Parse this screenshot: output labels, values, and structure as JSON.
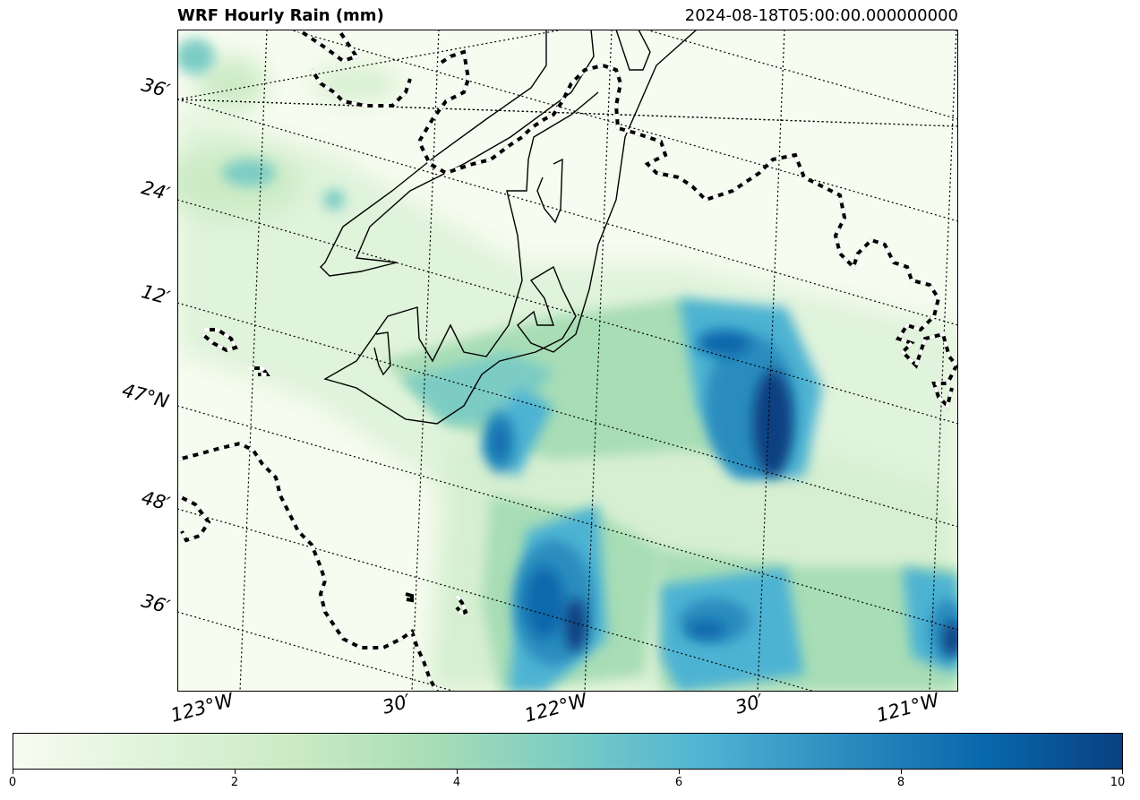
{
  "header": {
    "title": "WRF Hourly Rain (mm)",
    "timestamp": "2024-08-18T05:00:00.000000000"
  },
  "map": {
    "lat_labels": [
      "36′",
      "24′",
      "12′",
      "47°N",
      "48′",
      "36′"
    ],
    "lon_labels": [
      "123°W",
      "30′",
      "122°W",
      "30′",
      "121°W"
    ],
    "colormap": "GnBu",
    "colors": {
      "background": "#f7fcf0",
      "light": "#ccebc5",
      "mid": "#7bccc4",
      "strong": "#2b8cbe",
      "heavy": "#084081"
    }
  },
  "colorbar": {
    "tick_labels": [
      "0",
      "2",
      "4",
      "6",
      "8",
      "10"
    ],
    "min": 0,
    "max": 10
  }
}
